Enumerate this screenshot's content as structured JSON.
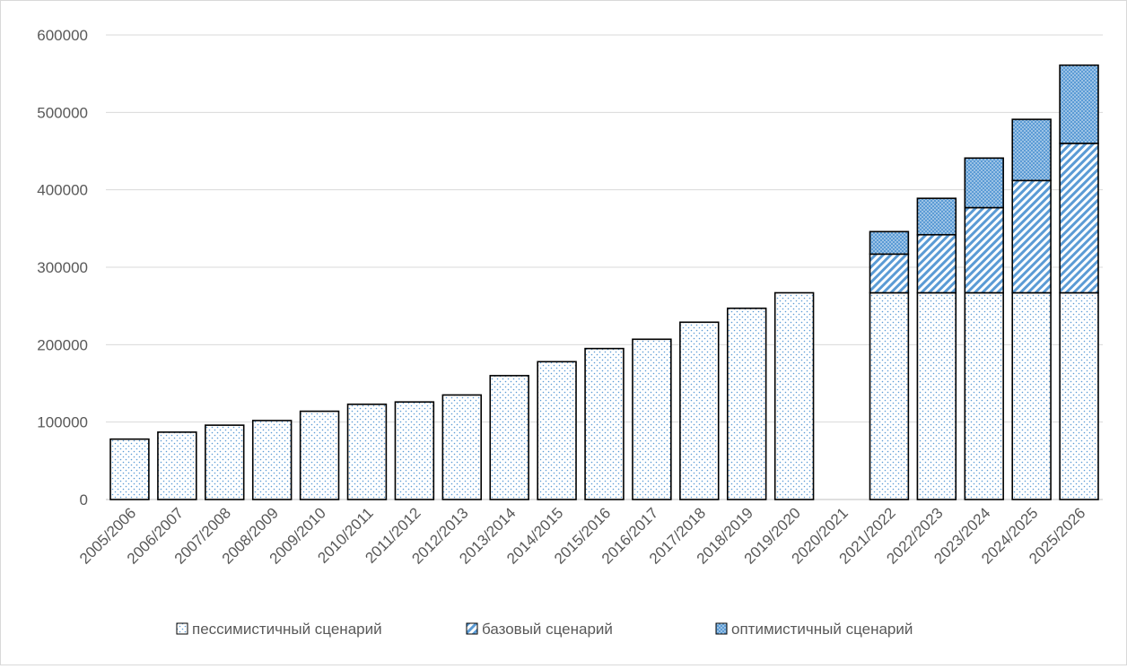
{
  "chart_data": {
    "type": "bar",
    "stacked": true,
    "title": "",
    "xlabel": "",
    "ylabel": "",
    "ylim": [
      0,
      600000
    ],
    "yticks": [
      0,
      100000,
      200000,
      300000,
      400000,
      500000,
      600000
    ],
    "grid": true,
    "legend_position": "bottom",
    "categories": [
      "2005/2006",
      "2006/2007",
      "2007/2008",
      "2008/2009",
      "2009/2010",
      "2010/2011",
      "2011/2012",
      "2012/2013",
      "2013/2014",
      "2014/2015",
      "2015/2016",
      "2016/2017",
      "2017/2018",
      "2018/2019",
      "2019/2020",
      "2020/2021",
      "2021/2022",
      "2022/2023",
      "2023/2024",
      "2024/2025",
      "2025/2026"
    ],
    "series": [
      {
        "name": "пессимистичный сценарий",
        "pattern": "dots",
        "color": "#5b9bd5",
        "values": [
          78000,
          87000,
          96000,
          102000,
          114000,
          123000,
          126000,
          135000,
          160000,
          178000,
          195000,
          207000,
          229000,
          247000,
          267000,
          null,
          267000,
          267000,
          267000,
          267000,
          267000
        ]
      },
      {
        "name": "базовый сценарий",
        "pattern": "diagonal",
        "color": "#5b9bd5",
        "values": [
          null,
          null,
          null,
          null,
          null,
          null,
          null,
          null,
          null,
          null,
          null,
          null,
          null,
          null,
          null,
          null,
          50000,
          75000,
          110000,
          145000,
          193000
        ]
      },
      {
        "name": "оптимистичный сценарий",
        "pattern": "dense-dots",
        "color": "#5b9bd5",
        "values": [
          null,
          null,
          null,
          null,
          null,
          null,
          null,
          null,
          null,
          null,
          null,
          null,
          null,
          null,
          null,
          null,
          29000,
          47000,
          64000,
          79000,
          101000
        ]
      }
    ]
  },
  "colors": {
    "grid": "#d9d9d9",
    "axis": "#bfbfbf",
    "text": "#595959",
    "bar_outline": "#000000",
    "accent": "#5b9bd5"
  }
}
